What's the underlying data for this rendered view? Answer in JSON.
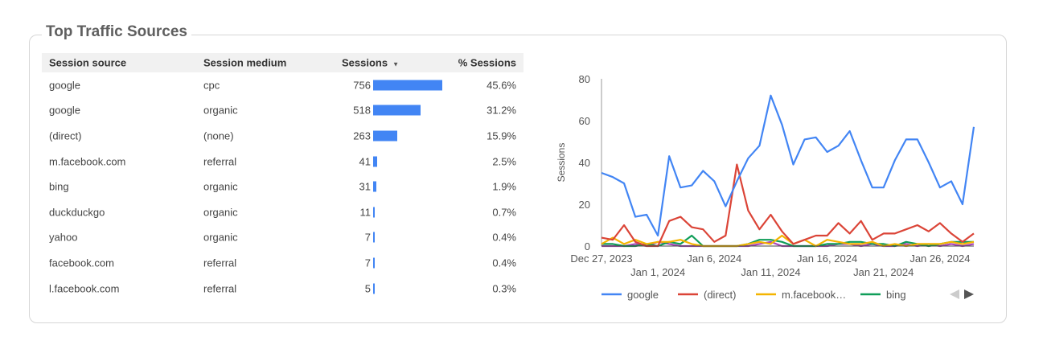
{
  "title": "Top Traffic Sources",
  "table": {
    "headers": [
      "Session source",
      "Session medium",
      "Sessions",
      "% Sessions"
    ],
    "sort_icon": "sort-descending-icon",
    "bar_color": "#4285f4",
    "rows": [
      {
        "source": "google",
        "medium": "cpc",
        "sessions": 756,
        "pct": "45.6%"
      },
      {
        "source": "google",
        "medium": "organic",
        "sessions": 518,
        "pct": "31.2%"
      },
      {
        "source": "(direct)",
        "medium": "(none)",
        "sessions": 263,
        "pct": "15.9%"
      },
      {
        "source": "m.facebook.com",
        "medium": "referral",
        "sessions": 41,
        "pct": "2.5%"
      },
      {
        "source": "bing",
        "medium": "organic",
        "sessions": 31,
        "pct": "1.9%"
      },
      {
        "source": "duckduckgo",
        "medium": "organic",
        "sessions": 11,
        "pct": "0.7%"
      },
      {
        "source": "yahoo",
        "medium": "organic",
        "sessions": 7,
        "pct": "0.4%"
      },
      {
        "source": "facebook.com",
        "medium": "referral",
        "sessions": 7,
        "pct": "0.4%"
      },
      {
        "source": "l.facebook.com",
        "medium": "referral",
        "sessions": 5,
        "pct": "0.3%"
      }
    ]
  },
  "chart_data": {
    "type": "line",
    "ylabel": "Sessions",
    "ylim": [
      0,
      80
    ],
    "yticks": [
      0,
      20,
      40,
      60,
      80
    ],
    "x_start": "2023-12-27",
    "xtick_labels": [
      "Dec 27, 2023",
      "Jan 1, 2024",
      "Jan 6, 2024",
      "Jan 11, 2024",
      "Jan 16, 2024",
      "Jan 21, 2024",
      "Jan 26, 2024"
    ],
    "legend_position": "bottom",
    "series": [
      {
        "name": "google",
        "color": "#4285f4",
        "values": [
          35,
          33,
          30,
          14,
          15,
          5,
          43,
          28,
          29,
          36,
          31,
          19,
          31,
          42,
          48,
          72,
          58,
          39,
          51,
          52,
          45,
          48,
          55,
          41,
          28,
          28,
          41,
          51,
          51,
          40,
          28,
          31,
          20,
          57
        ]
      },
      {
        "name": "(direct)",
        "color": "#db4437",
        "values": [
          4,
          3,
          10,
          2,
          0,
          0,
          12,
          14,
          9,
          8,
          2,
          5,
          39,
          17,
          8,
          15,
          7,
          1,
          3,
          5,
          5,
          11,
          6,
          12,
          3,
          6,
          6,
          8,
          10,
          7,
          11,
          6,
          2,
          6
        ]
      },
      {
        "name": "m.facebook…",
        "color": "#f4b400",
        "values": [
          1,
          4,
          1,
          3,
          1,
          2,
          2,
          3,
          1,
          0,
          0,
          0,
          0,
          1,
          2,
          1,
          5,
          1,
          3,
          0,
          3,
          2,
          1,
          1,
          2,
          0,
          1,
          0,
          1,
          1,
          1,
          2,
          1,
          2
        ]
      },
      {
        "name": "bing",
        "color": "#0f9d58",
        "values": [
          1,
          1,
          0,
          0,
          1,
          0,
          2,
          1,
          5,
          0,
          0,
          0,
          0,
          1,
          3,
          3,
          2,
          0,
          0,
          0,
          1,
          1,
          2,
          2,
          1,
          1,
          0,
          2,
          1,
          0,
          1,
          2,
          2,
          2
        ]
      },
      {
        "color": "#ab47bc",
        "values": [
          0,
          0,
          0,
          1,
          0,
          2,
          1,
          0,
          0,
          0,
          0,
          0,
          0,
          0,
          1,
          2,
          0,
          0,
          0,
          0,
          0,
          1,
          1,
          0,
          1,
          0,
          0,
          1,
          0,
          1,
          0,
          1,
          0,
          1
        ]
      }
    ],
    "legend_nav": {
      "prev_icon": "triangle-left-icon",
      "next_icon": "triangle-right-icon"
    }
  }
}
